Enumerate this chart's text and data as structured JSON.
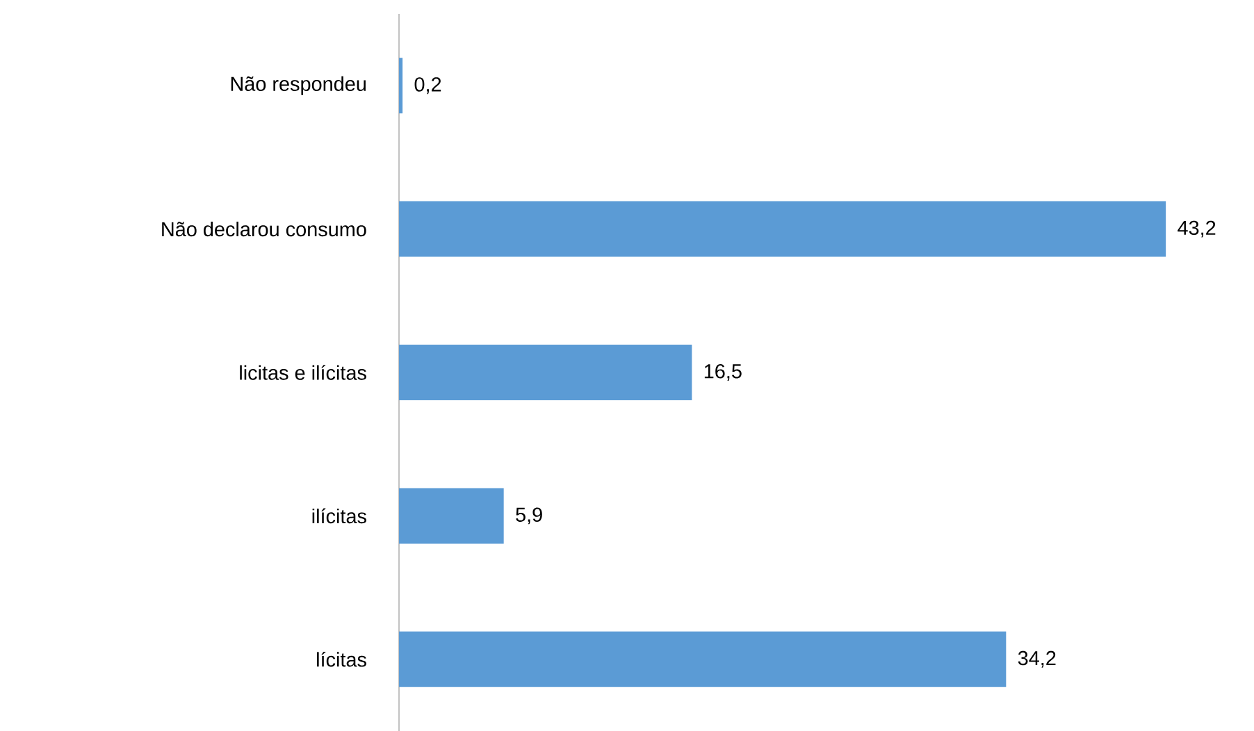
{
  "chart_data": {
    "type": "bar",
    "orientation": "horizontal",
    "categories": [
      "Não respondeu",
      "Não declarou consumo",
      "licitas e ilícitas",
      "ilícitas",
      "lícitas"
    ],
    "values": [
      0.2,
      43.2,
      16.5,
      5.9,
      34.2
    ],
    "value_labels": [
      "0,2",
      "43,2",
      "16,5",
      "5,9",
      "34,2"
    ],
    "color": "#5b9bd5"
  }
}
